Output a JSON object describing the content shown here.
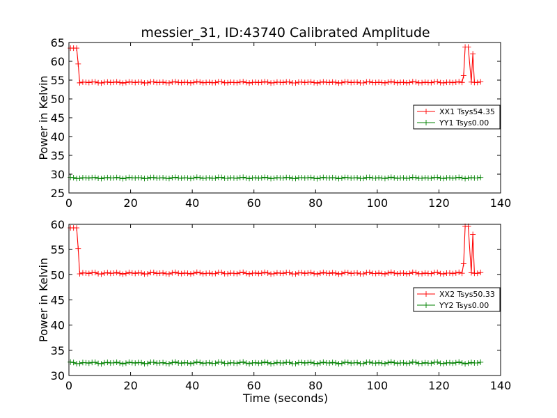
{
  "title": "messier_31, ID:43740 Calibrated Amplitude",
  "xlabel": "Time (seconds)",
  "chart_data": [
    {
      "type": "line",
      "ylabel": "Power in Kelvin",
      "xlabel": "",
      "xlim": [
        0,
        140
      ],
      "ylim": [
        25,
        65
      ],
      "xticks": [
        "0",
        "20",
        "40",
        "60",
        "80",
        "100",
        "120",
        "140"
      ],
      "yticks": [
        "25",
        "30",
        "35",
        "40",
        "45",
        "50",
        "55",
        "60",
        "65"
      ],
      "grid": false,
      "legend_position": "right",
      "time": {
        "start": 0.5,
        "end": 134,
        "step": 1
      },
      "series": [
        {
          "name": "XX1 Tsys54.35",
          "color": "#ff0000",
          "marker": "plus",
          "baseline": 54.4,
          "segments": [
            {
              "from": 0.5,
              "to": 2.6,
              "value": 63.5
            },
            {
              "at": 3.0,
              "value": 59.3
            },
            {
              "from": 128.5,
              "to": 130.0,
              "value": 63.8
            },
            {
              "at": 128.0,
              "value": 56.2
            },
            {
              "at": 131.0,
              "value": 62.0
            }
          ]
        },
        {
          "name": "YY1 Tsys0.00",
          "color": "#008000",
          "marker": "plus",
          "baseline": 29.0,
          "segments": []
        }
      ]
    },
    {
      "type": "line",
      "ylabel": "Power in Kelvin",
      "xlabel": "Time (seconds)",
      "xlim": [
        0,
        140
      ],
      "ylim": [
        30,
        60
      ],
      "xticks": [
        "0",
        "20",
        "40",
        "60",
        "80",
        "100",
        "120",
        "140"
      ],
      "yticks": [
        "30",
        "35",
        "40",
        "45",
        "50",
        "55",
        "60"
      ],
      "grid": false,
      "legend_position": "right",
      "time": {
        "start": 0.5,
        "end": 134,
        "step": 1
      },
      "series": [
        {
          "name": "XX2 Tsys50.33",
          "color": "#ff0000",
          "marker": "plus",
          "baseline": 50.3,
          "segments": [
            {
              "from": 0.5,
              "to": 2.6,
              "value": 59.3
            },
            {
              "at": 3.0,
              "value": 55.2
            },
            {
              "from": 128.5,
              "to": 130.0,
              "value": 59.6
            },
            {
              "at": 128.0,
              "value": 52.2
            },
            {
              "at": 131.0,
              "value": 58.0
            }
          ]
        },
        {
          "name": "YY2 Tsys0.00",
          "color": "#008000",
          "marker": "plus",
          "baseline": 32.5,
          "segments": []
        }
      ]
    }
  ]
}
